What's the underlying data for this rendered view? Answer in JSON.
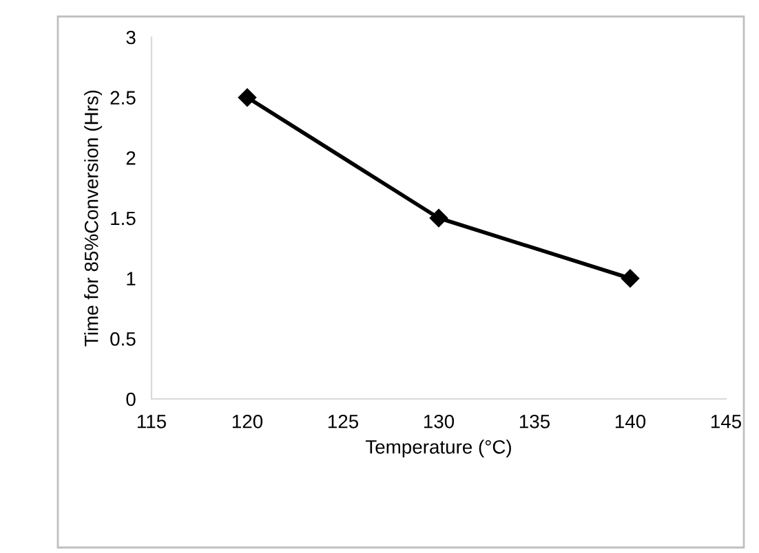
{
  "chart_data": {
    "type": "line",
    "xlabel": "Temperature (°C)",
    "ylabel": "Time for 85%Conversion (Hrs)",
    "x": [
      120,
      130,
      140
    ],
    "series": [
      {
        "color": "#000000",
        "values": [
          2.5,
          1.5,
          1
        ]
      }
    ],
    "xlim": [
      115,
      145
    ],
    "xticks": [
      115,
      120,
      125,
      130,
      135,
      140,
      145
    ],
    "ylim": [
      0,
      3
    ],
    "yticks": [
      0,
      0.5,
      1,
      1.5,
      2,
      2.5,
      3
    ],
    "marker": "diamond",
    "line_style": "solid",
    "grid": false,
    "legend": false
  }
}
